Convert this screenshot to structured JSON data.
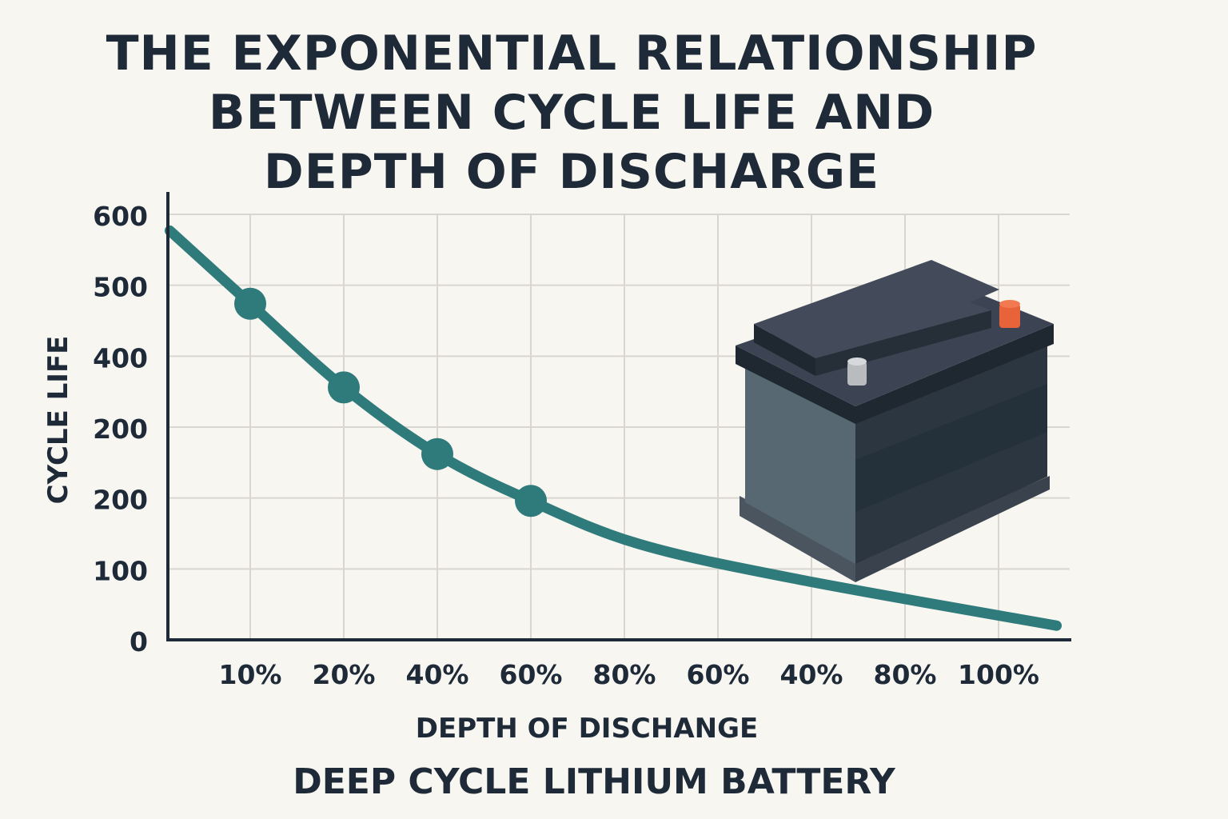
{
  "chart_data": {
    "type": "line",
    "title": [
      "THE EXPONENTIAL RELATIONSHIP",
      "BETWEEN CYCLE LIFE AND",
      "DEPTH OF DISCHARGE"
    ],
    "subtitle": "DEEP CYCLE LITHIUM BATTERY",
    "xlabel": "DEPTH OF DISCHANGE",
    "ylabel": "CYCLE LIFE",
    "x_tick_labels": [
      "10%",
      "20%",
      "40%",
      "60%",
      "80%",
      "60%",
      "40%",
      "80%",
      "100%"
    ],
    "y_tick_labels": [
      "0",
      "100",
      "200",
      "200",
      "400",
      "500",
      "600"
    ],
    "ylim": [
      0,
      600
    ],
    "grid": true,
    "series": [
      {
        "color": "#2f7a7a",
        "curve": [
          [
            -0.86,
            577
          ],
          [
            0,
            474
          ],
          [
            1,
            356
          ],
          [
            2,
            262
          ],
          [
            3,
            196
          ],
          [
            4.16,
            135
          ],
          [
            5.87,
            85
          ],
          [
            8.62,
            20
          ]
        ],
        "markers": [
          [
            0,
            474
          ],
          [
            1,
            356
          ],
          [
            2,
            262
          ],
          [
            3,
            196
          ]
        ]
      }
    ],
    "illustration": "battery",
    "colors": {
      "line": "#2f7a7a",
      "text": "#1e2a38",
      "background": "#f8f6f1",
      "terminal_positive": "#e8623a",
      "terminal_negative": "#b8bcbf"
    }
  }
}
